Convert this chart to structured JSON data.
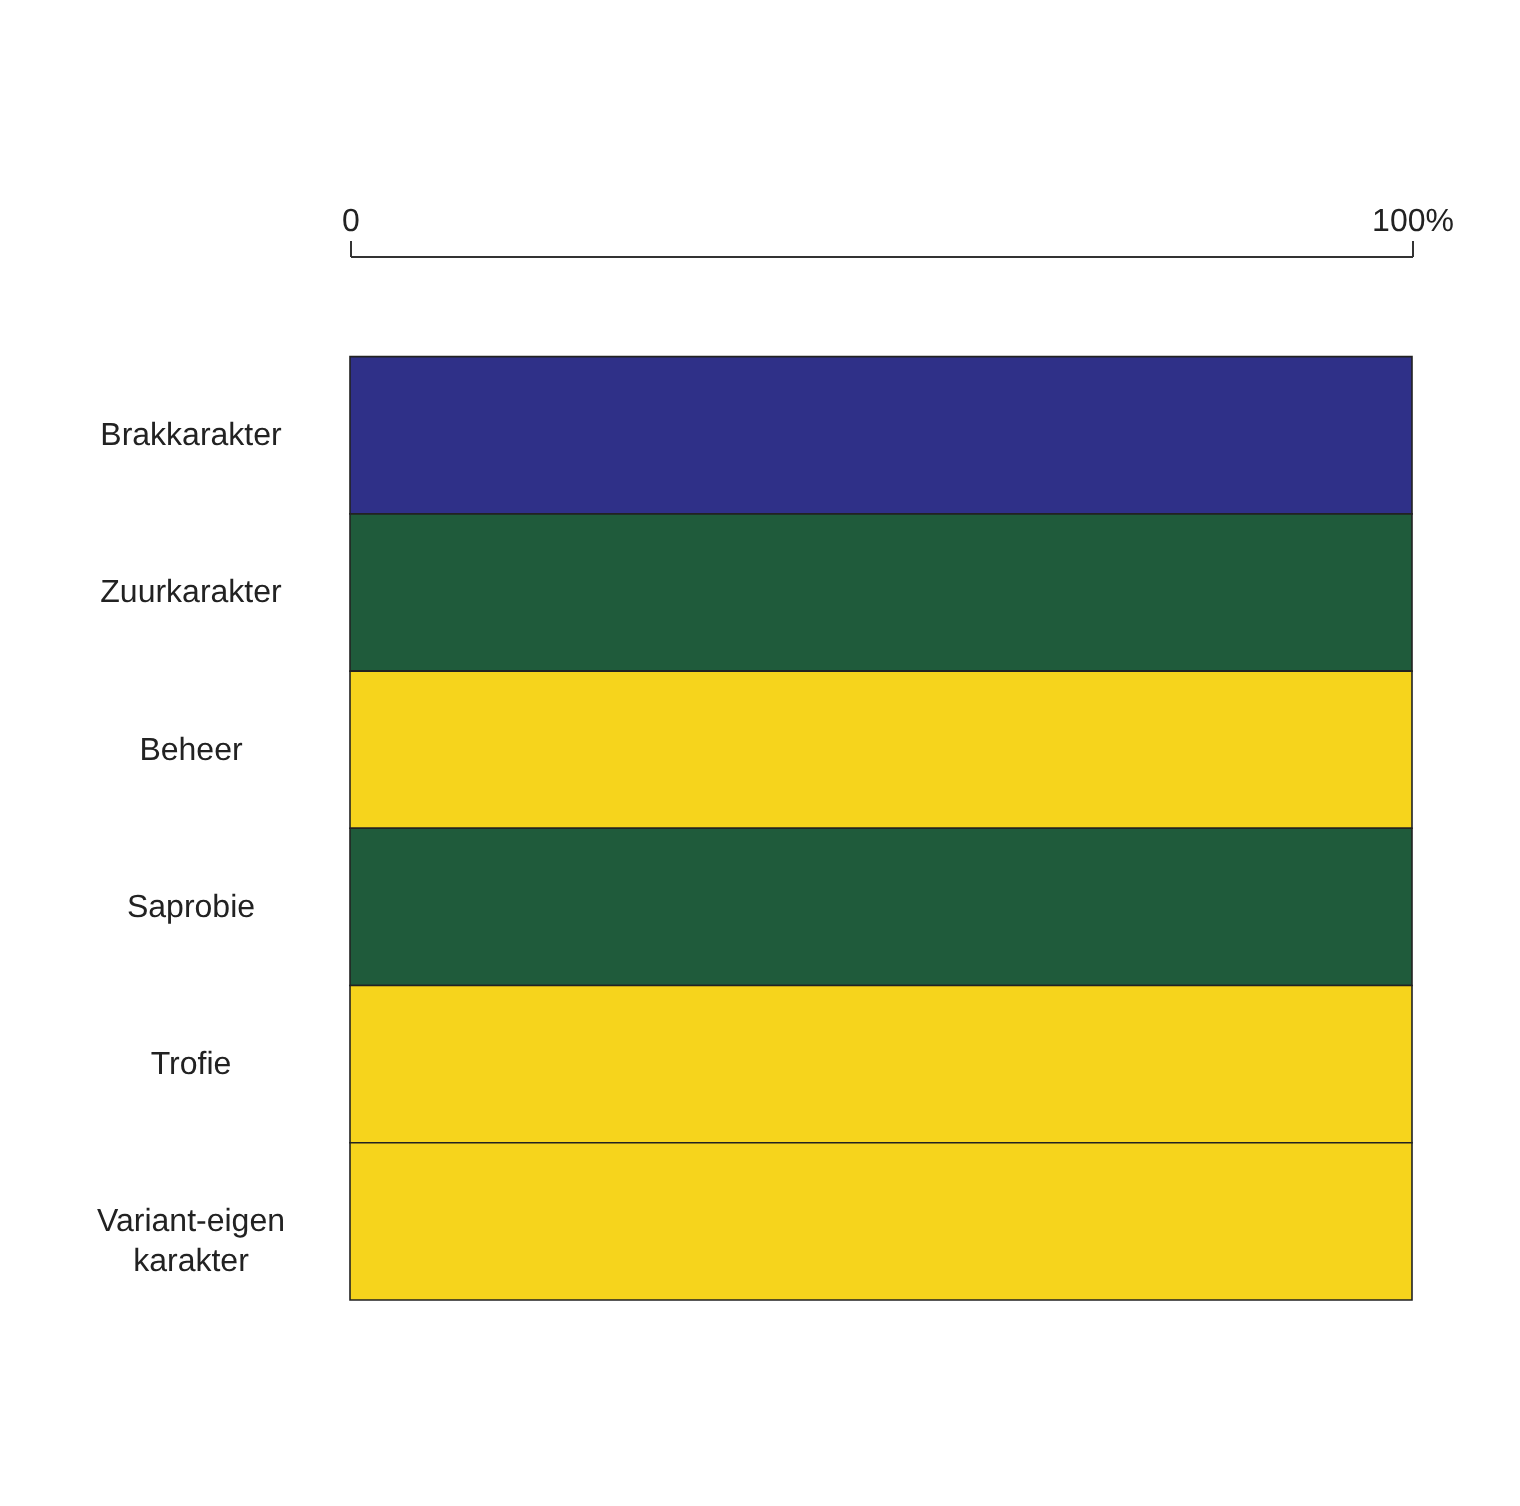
{
  "chart_data": {
    "type": "bar",
    "orientation": "horizontal",
    "categories": [
      "Brakkarakter",
      "Zuurkarakter",
      "Beheer",
      "Saprobie",
      "Trofie",
      "Variant-eigen karakter"
    ],
    "values": [
      100,
      100,
      100,
      100,
      100,
      100
    ],
    "colors": [
      "#2f3088",
      "#1f5b3b",
      "#f6d41c",
      "#1f5b3b",
      "#f6d41c",
      "#f6d41c"
    ],
    "xlim": [
      0,
      100
    ],
    "xticks": [
      0,
      {
        "value": 100,
        "label": "100%"
      }
    ],
    "grid": false
  }
}
